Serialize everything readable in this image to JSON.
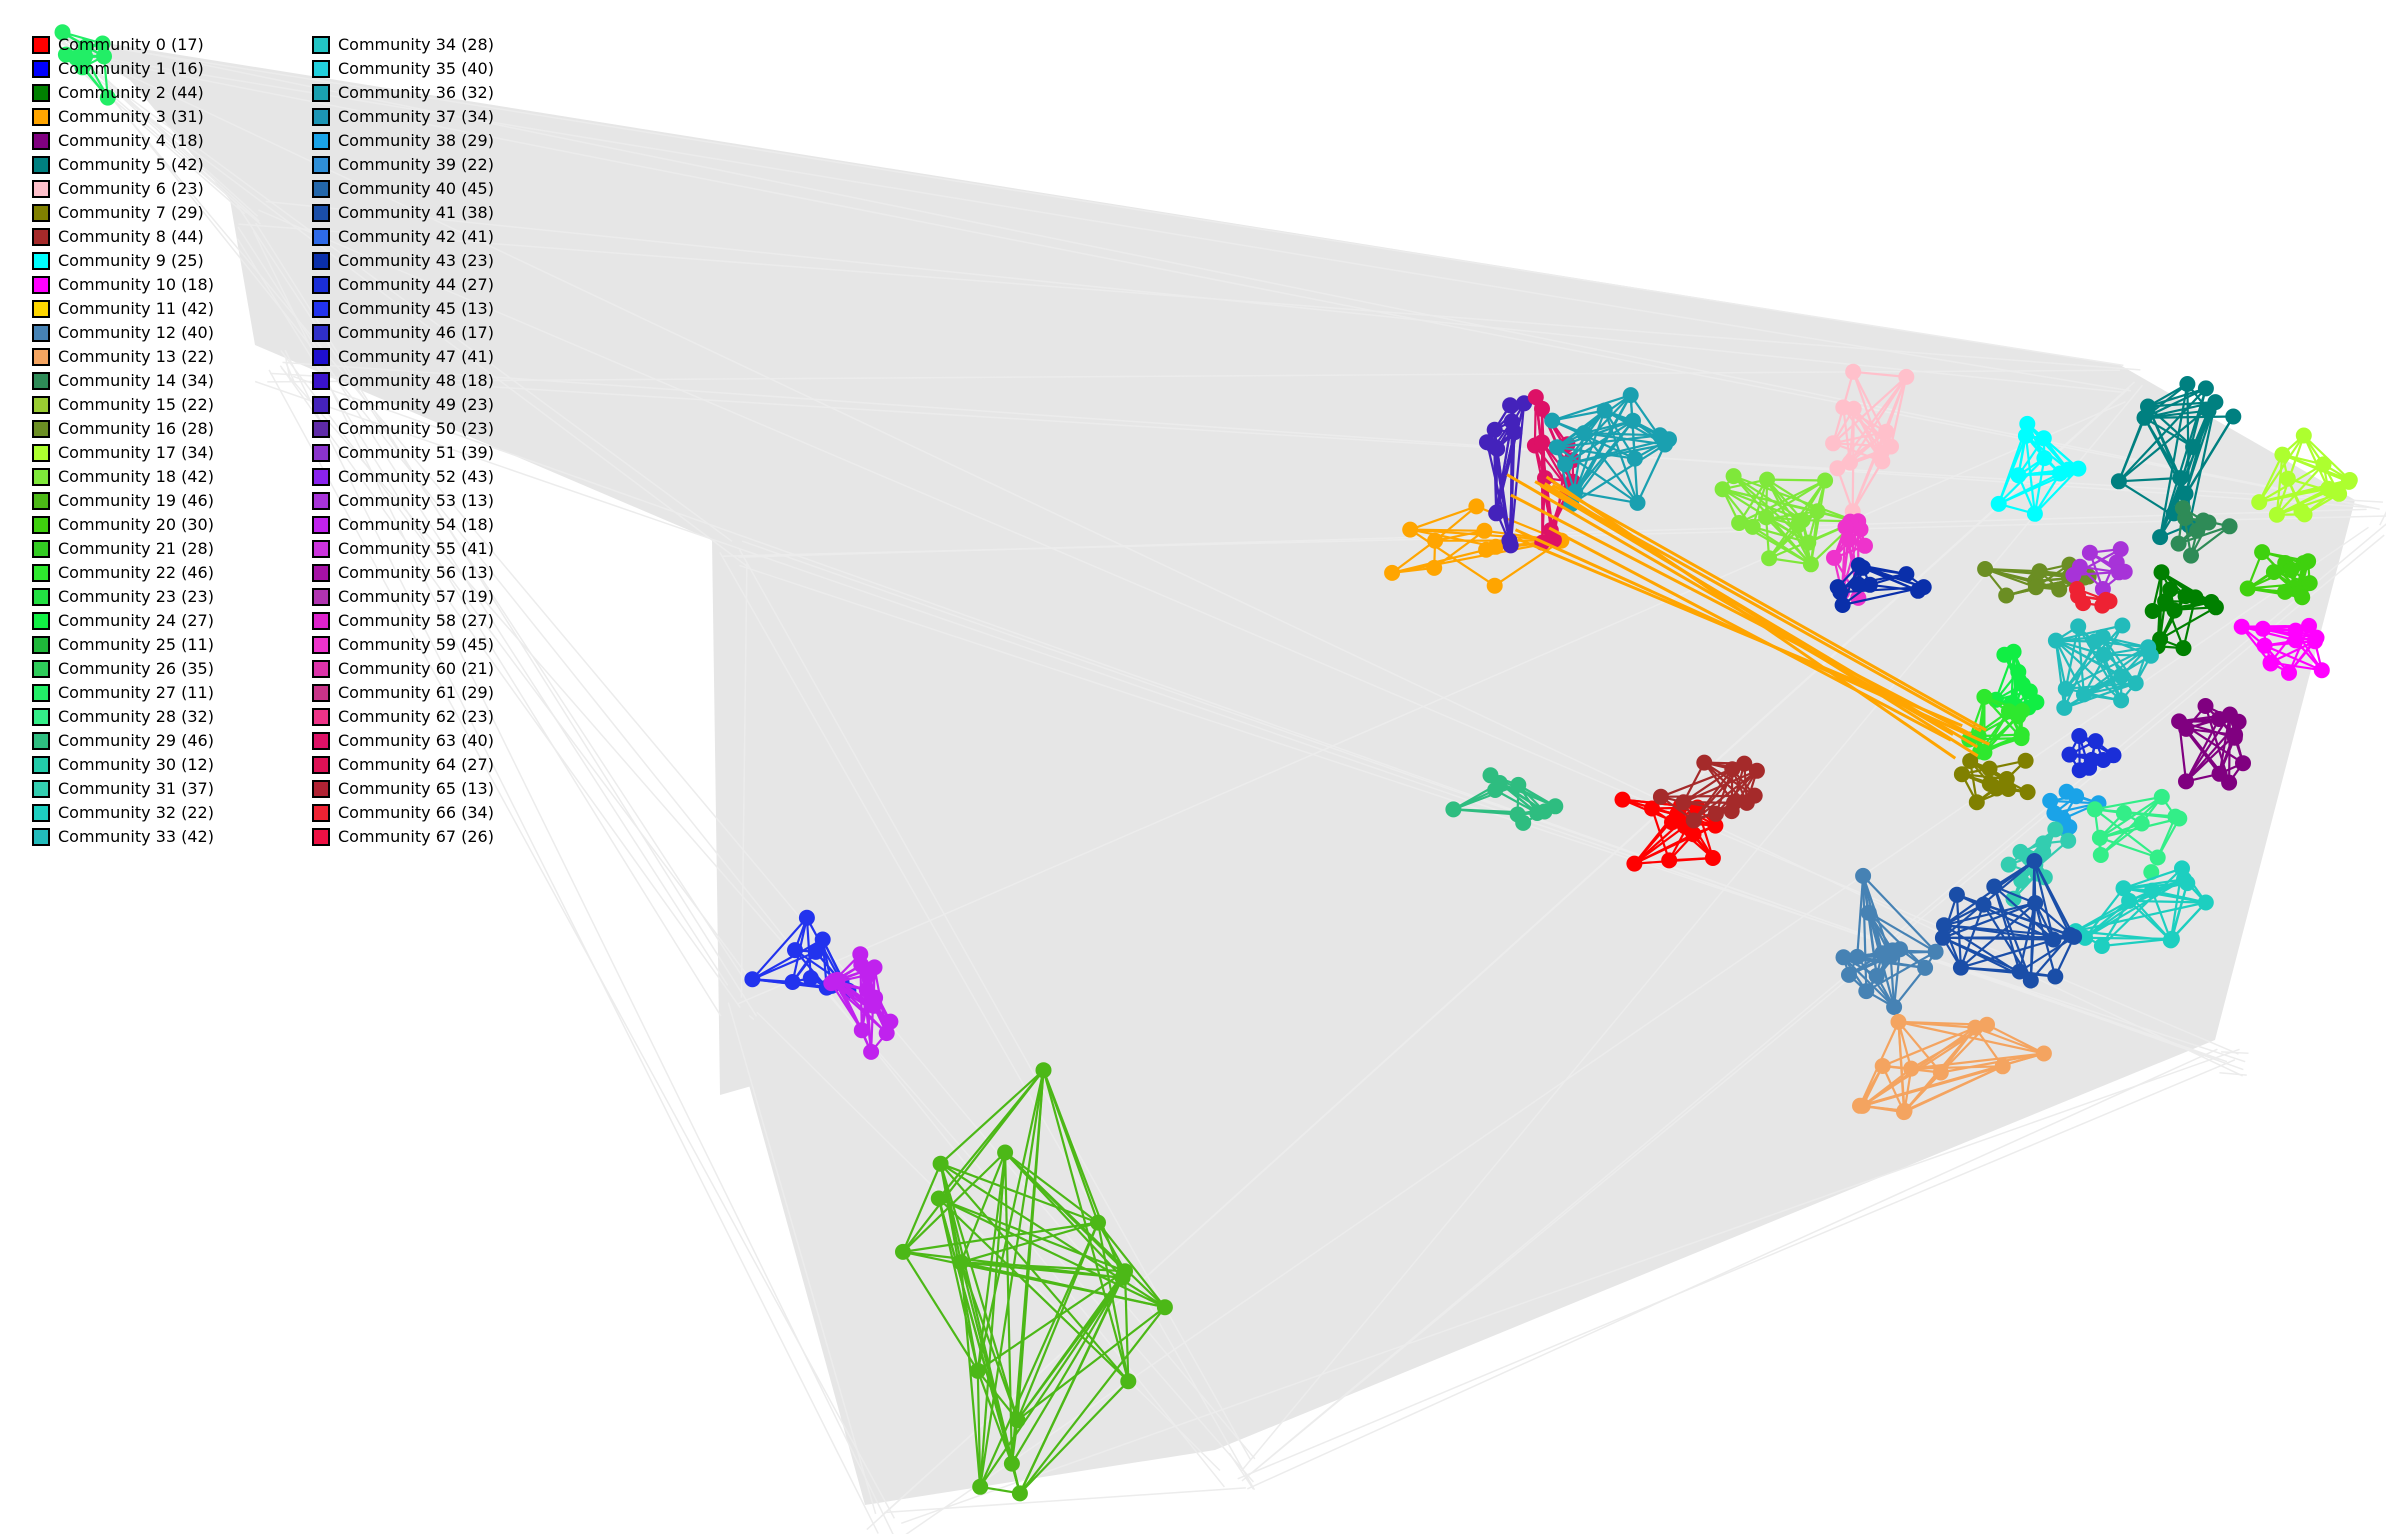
{
  "communities": [
    {
      "label": "Community 0 (17)",
      "color": "#ff0000"
    },
    {
      "label": "Community 1 (16)",
      "color": "#0000ff"
    },
    {
      "label": "Community 2 (44)",
      "color": "#008000"
    },
    {
      "label": "Community 3 (31)",
      "color": "#ffa500"
    },
    {
      "label": "Community 4 (18)",
      "color": "#800080"
    },
    {
      "label": "Community 5 (42)",
      "color": "#008080"
    },
    {
      "label": "Community 6 (23)",
      "color": "#ffc0cb"
    },
    {
      "label": "Community 7 (29)",
      "color": "#808000"
    },
    {
      "label": "Community 8 (44)",
      "color": "#a52a2a"
    },
    {
      "label": "Community 9 (25)",
      "color": "#00ffff"
    },
    {
      "label": "Community 10 (18)",
      "color": "#ff00ff"
    },
    {
      "label": "Community 11 (42)",
      "color": "#ffd700"
    },
    {
      "label": "Community 12 (40)",
      "color": "#4682b4"
    },
    {
      "label": "Community 13 (22)",
      "color": "#f4a460"
    },
    {
      "label": "Community 14 (34)",
      "color": "#2e8b57"
    },
    {
      "label": "Community 15 (22)",
      "color": "#9acd32"
    },
    {
      "label": "Community 16 (28)",
      "color": "#6b8e23"
    },
    {
      "label": "Community 17 (34)",
      "color": "#adff2f"
    },
    {
      "label": "Community 18 (42)",
      "color": "#7fe83a"
    },
    {
      "label": "Community 19 (46)",
      "color": "#4cb817"
    },
    {
      "label": "Community 20 (30)",
      "color": "#3fd10e"
    },
    {
      "label": "Community 21 (28)",
      "color": "#33cc22"
    },
    {
      "label": "Community 22 (46)",
      "color": "#2ee82e"
    },
    {
      "label": "Community 23 (23)",
      "color": "#22e042"
    },
    {
      "label": "Community 24 (27)",
      "color": "#11ee44"
    },
    {
      "label": "Community 25 (11)",
      "color": "#1fb83a"
    },
    {
      "label": "Community 26 (35)",
      "color": "#2ecc5a"
    },
    {
      "label": "Community 27 (11)",
      "color": "#22ee66"
    },
    {
      "label": "Community 28 (32)",
      "color": "#33ee88"
    },
    {
      "label": "Community 29 (46)",
      "color": "#2ebd80"
    },
    {
      "label": "Community 30 (12)",
      "color": "#22ccaa"
    },
    {
      "label": "Community 31 (37)",
      "color": "#33cdb0"
    },
    {
      "label": "Community 32 (22)",
      "color": "#1dcfc0"
    },
    {
      "label": "Community 33 (42)",
      "color": "#22bbbb"
    },
    {
      "label": "Community 34 (28)",
      "color": "#22c4c4"
    },
    {
      "label": "Community 35 (40)",
      "color": "#22d0dd"
    },
    {
      "label": "Community 36 (32)",
      "color": "#1aa0b0"
    },
    {
      "label": "Community 37 (34)",
      "color": "#1c95b5"
    },
    {
      "label": "Community 38 (29)",
      "color": "#1aa3e8"
    },
    {
      "label": "Community 39 (22)",
      "color": "#2f8fd8"
    },
    {
      "label": "Community 40 (45)",
      "color": "#2266aa"
    },
    {
      "label": "Community 41 (38)",
      "color": "#1a4ea8"
    },
    {
      "label": "Community 42 (41)",
      "color": "#2e6ae8"
    },
    {
      "label": "Community 43 (23)",
      "color": "#0a2faa"
    },
    {
      "label": "Community 44 (27)",
      "color": "#1a2ed8"
    },
    {
      "label": "Community 45 (13)",
      "color": "#2233ee"
    },
    {
      "label": "Community 46 (17)",
      "color": "#2f2fc8"
    },
    {
      "label": "Community 47 (41)",
      "color": "#1e0fd0"
    },
    {
      "label": "Community 48 (18)",
      "color": "#3a12cc"
    },
    {
      "label": "Community 49 (23)",
      "color": "#4422bb"
    },
    {
      "label": "Community 50 (23)",
      "color": "#5f2aa8"
    },
    {
      "label": "Community 51 (39)",
      "color": "#8a33cc"
    },
    {
      "label": "Community 52 (43)",
      "color": "#8a22ee"
    },
    {
      "label": "Community 53 (13)",
      "color": "#a733d8"
    },
    {
      "label": "Community 54 (18)",
      "color": "#c022ee"
    },
    {
      "label": "Community 55 (41)",
      "color": "#cc33dd"
    },
    {
      "label": "Community 56 (13)",
      "color": "#a411a4"
    },
    {
      "label": "Community 57 (19)",
      "color": "#b033b0"
    },
    {
      "label": "Community 58 (27)",
      "color": "#dd22cc"
    },
    {
      "label": "Community 59 (45)",
      "color": "#ee33cc"
    },
    {
      "label": "Community 60 (21)",
      "color": "#dd33aa"
    },
    {
      "label": "Community 61 (29)",
      "color": "#c83388"
    },
    {
      "label": "Community 62 (23)",
      "color": "#ee3388"
    },
    {
      "label": "Community 63 (40)",
      "color": "#dd1166"
    },
    {
      "label": "Community 64 (27)",
      "color": "#dd1155"
    },
    {
      "label": "Community 65 (13)",
      "color": "#b02233"
    },
    {
      "label": "Community 66 (34)",
      "color": "#ee2233"
    },
    {
      "label": "Community 67 (26)",
      "color": "#ee1144"
    }
  ],
  "background_edge_color": "#e6e6e6"
}
